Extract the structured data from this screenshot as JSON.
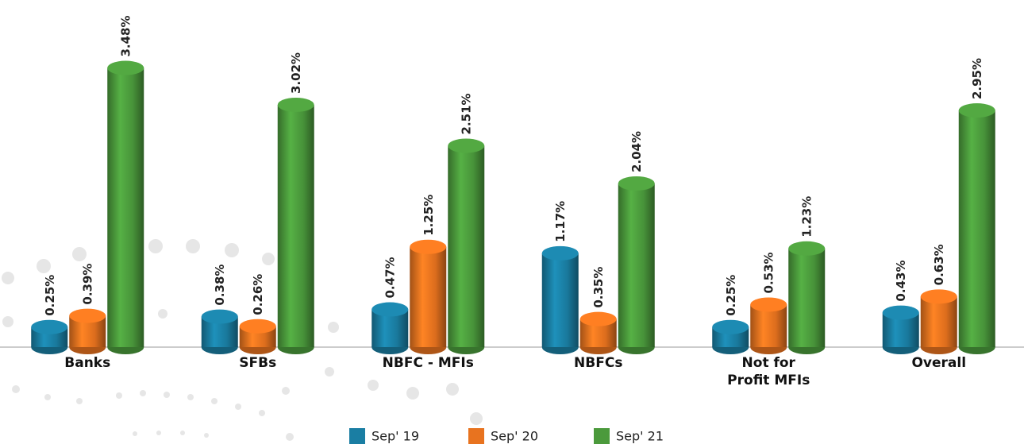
{
  "chart_data": {
    "type": "bar",
    "categories": [
      "Banks",
      "SFBs",
      "NBFC - MFIs",
      "NBFCs",
      "Not for Profit MFIs",
      "Overall"
    ],
    "series": [
      {
        "name": "Sep' 19",
        "color": "#1a7ea3",
        "values": [
          0.25,
          0.38,
          0.47,
          1.17,
          0.25,
          0.43
        ],
        "value_labels": [
          "0.25%",
          "0.38%",
          "0.47%",
          "1.17%",
          "0.25%",
          "0.43%"
        ]
      },
      {
        "name": "Sep' 20",
        "color": "#e8731f",
        "values": [
          0.39,
          0.26,
          1.25,
          0.35,
          0.53,
          0.63
        ],
        "value_labels": [
          "0.39%",
          "0.26%",
          "1.25%",
          "0.35%",
          "0.53%",
          "0.63%"
        ]
      },
      {
        "name": "Sep' 21",
        "color": "#4b9a3c",
        "values": [
          3.48,
          3.02,
          2.51,
          2.04,
          1.23,
          2.95
        ],
        "value_labels": [
          "3.48%",
          "3.02%",
          "2.51%",
          "2.04%",
          "1.23%",
          "2.95%"
        ]
      }
    ],
    "ylim": [
      0,
      4
    ],
    "legend": "bottom"
  }
}
